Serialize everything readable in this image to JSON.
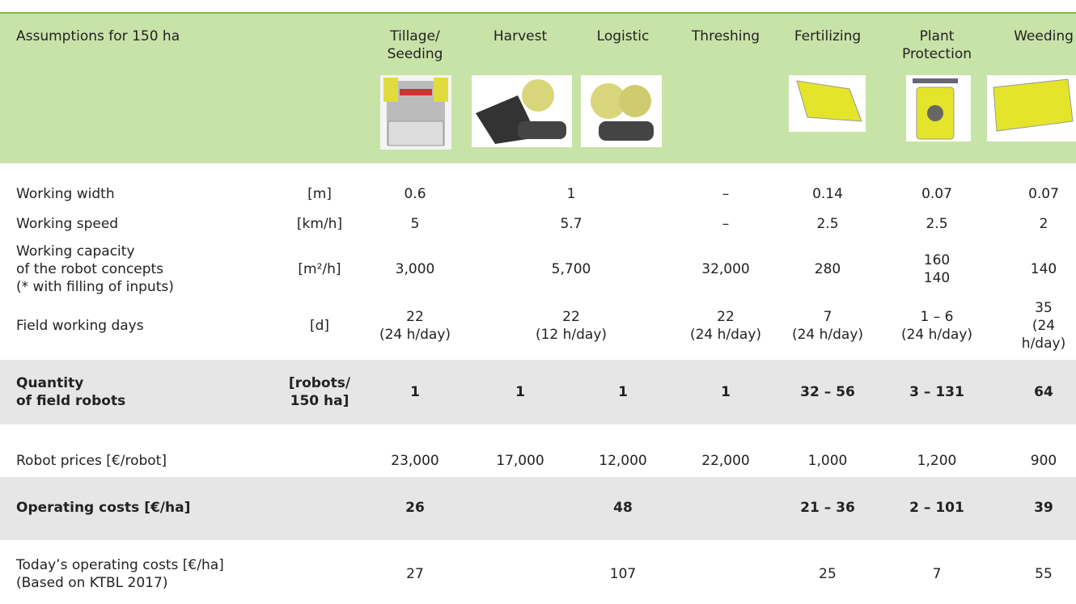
{
  "header": {
    "title": "Assumptions for 150 ha",
    "columns": [
      "Tillage/\nSeeding",
      "Harvest",
      "Logistic",
      "Threshing",
      "Fertilizing",
      "Plant\nProtection",
      "Weeding"
    ]
  },
  "rows": [
    {
      "label": "Working width",
      "unit": "[m]",
      "cells": [
        "0.6",
        "1",
        "–",
        "0.14",
        "0.07",
        "0.07"
      ]
    },
    {
      "label": "Working speed",
      "unit": "[km/h]",
      "cells": [
        "5",
        "5.7",
        "–",
        "2.5",
        "2.5",
        "2"
      ]
    },
    {
      "label": "Working capacity\nof the robot concepts\n(* with filling of inputs)",
      "unit": "[m²/h]",
      "cells": [
        "3,000",
        "5,700",
        "32,000",
        "280",
        "160\n140",
        "140"
      ]
    },
    {
      "label": "Field working days",
      "unit": "[d]",
      "cells": [
        "22\n(24 h/day)",
        "22\n(12 h/day)",
        "22\n(24 h/day)",
        "7\n(24 h/day)",
        "1 – 6\n(24 h/day)",
        "35\n(24 h/day)"
      ]
    },
    {
      "label": "Quantity\nof field robots",
      "unit": "[robots/\n150 ha]",
      "cells": [
        "1",
        "1",
        "1",
        "1",
        "32 – 56",
        "3 – 131",
        "64"
      ]
    },
    {
      "label": "Robot prices [€/robot]",
      "cells": [
        "23,000",
        "17,000",
        "12,000",
        "22,000",
        "1,000",
        "1,200",
        "900"
      ]
    },
    {
      "label": "Operating costs [€/ha]",
      "cells": [
        "26",
        "48",
        "21 – 36",
        "2 – 101",
        "39"
      ]
    },
    {
      "label": "Today’s operating costs [€/ha]\n(Based on KTBL 2017)",
      "cells": [
        "27",
        "107",
        "25",
        "7",
        "55"
      ]
    }
  ]
}
